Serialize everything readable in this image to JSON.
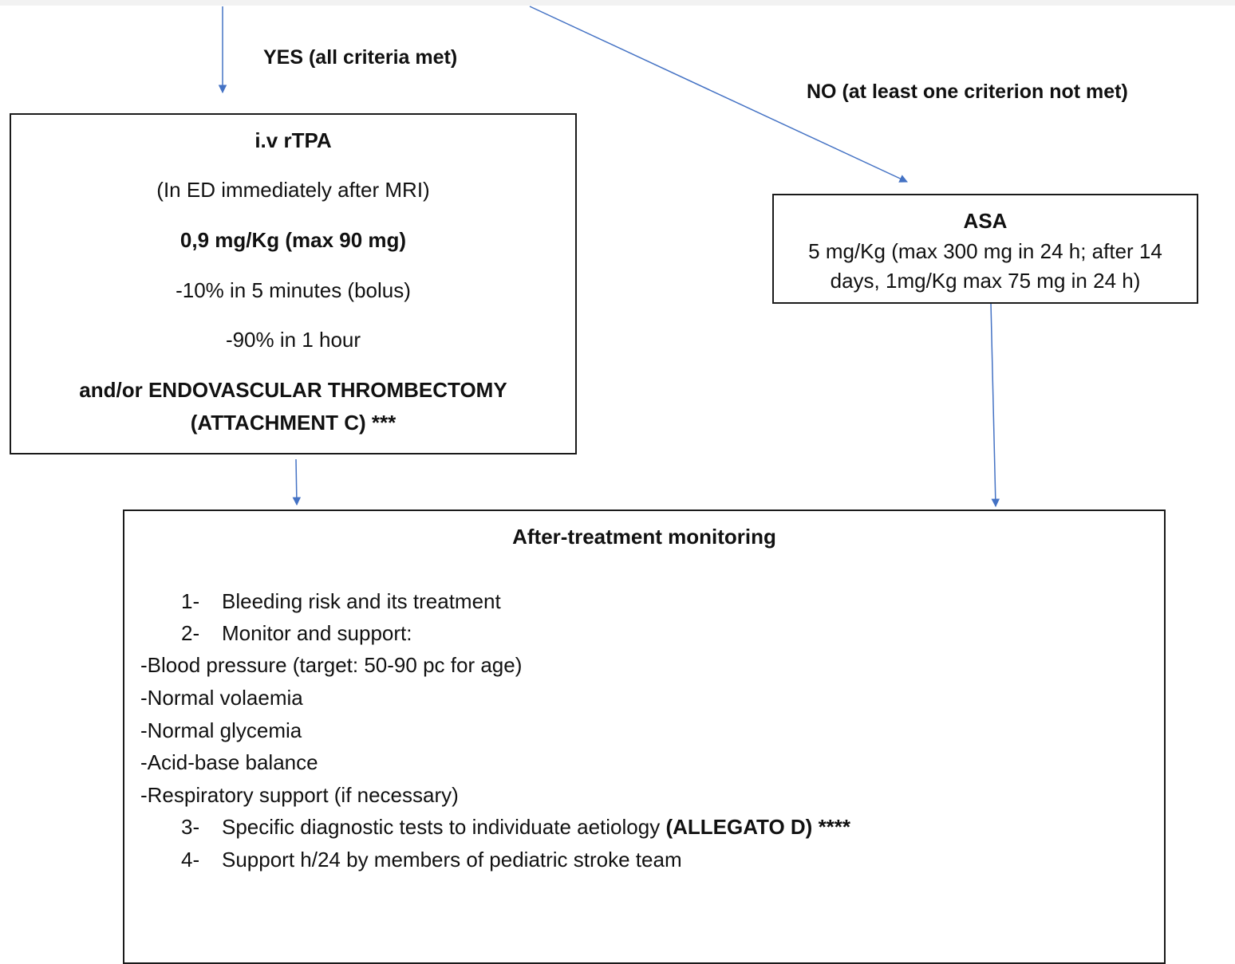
{
  "flow": {
    "yes_label": "YES (all criteria met)",
    "no_label": "NO (at least one criterion not met)"
  },
  "rtpa_box": {
    "title": "i.v rTPA",
    "setting": "(In ED immediately after MRI)",
    "dose": "0,9 mg/Kg (max 90 mg)",
    "bolus": "-10% in 5 minutes (bolus)",
    "infusion": "-90% in 1 hour",
    "alt_line1": "and/or ENDOVASCULAR THROMBECTOMY",
    "alt_line2": "(ATTACHMENT C) ***"
  },
  "asa_box": {
    "title": "ASA",
    "line1": "5 mg/Kg (max 300 mg in 24 h; after 14",
    "line2": "days, 1mg/Kg max 75 mg in 24 h)"
  },
  "monitoring_box": {
    "title": "After-treatment monitoring",
    "items": [
      {
        "num": "1-",
        "text": "Bleeding risk and its treatment"
      },
      {
        "num": "2-",
        "text": "Monitor and support:"
      }
    ],
    "subitems": [
      "-Blood pressure (target: 50-90 pc for age)",
      "-Normal volaemia",
      "-Normal glycemia",
      "-Acid-base balance",
      "-Respiratory support (if necessary)"
    ],
    "item3": {
      "num": "3-",
      "text": "Specific diagnostic tests to individuate aetiology ",
      "bold": "(ALLEGATO D) ****"
    },
    "item4": {
      "num": "4-",
      "text": "Support h/24 by members of pediatric stroke team"
    }
  },
  "colors": {
    "arrow": "#4472c4",
    "border": "#1a1a1a"
  }
}
